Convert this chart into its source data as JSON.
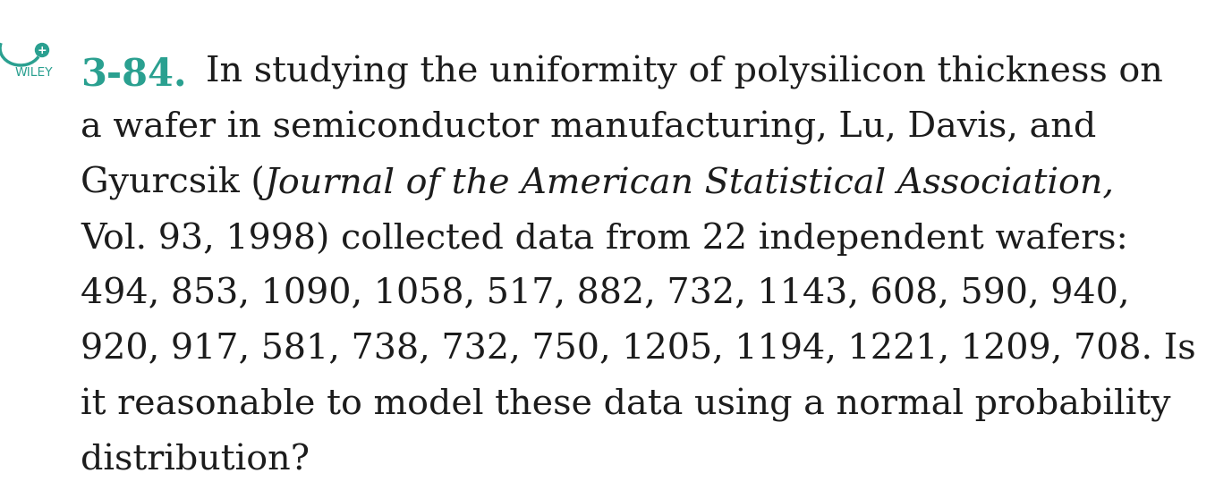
{
  "background_color": "#ffffff",
  "wiley_color": "#2aA090",
  "text_color": "#1c1c1c",
  "problem_number": "3-84.",
  "problem_number_color": "#2aA090",
  "wiley_label": "WILEY",
  "line1_normal": "In studying the uniformity of polysilicon thickness on",
  "line2_normal": "a wafer in semiconductor manufacturing, Lu, Davis, and",
  "line3_before_italic": "Gyurcsik (",
  "line3_italic": "Journal of the American Statistical Association,",
  "line4_normal": "Vol. 93, 1998) collected data from 22 independent wafers:",
  "line5_normal": "494, 853, 1090, 1058, 517, 882, 732, 1143, 608, 590, 940,",
  "line6_normal": "920, 917, 581, 738, 732, 750, 1205, 1194, 1221, 1209, 708. Is",
  "line7_normal": "it reasonable to model these data using a normal probability",
  "line8_normal": "distribution?",
  "figsize": [
    13.58,
    5.48
  ],
  "dpi": 100
}
